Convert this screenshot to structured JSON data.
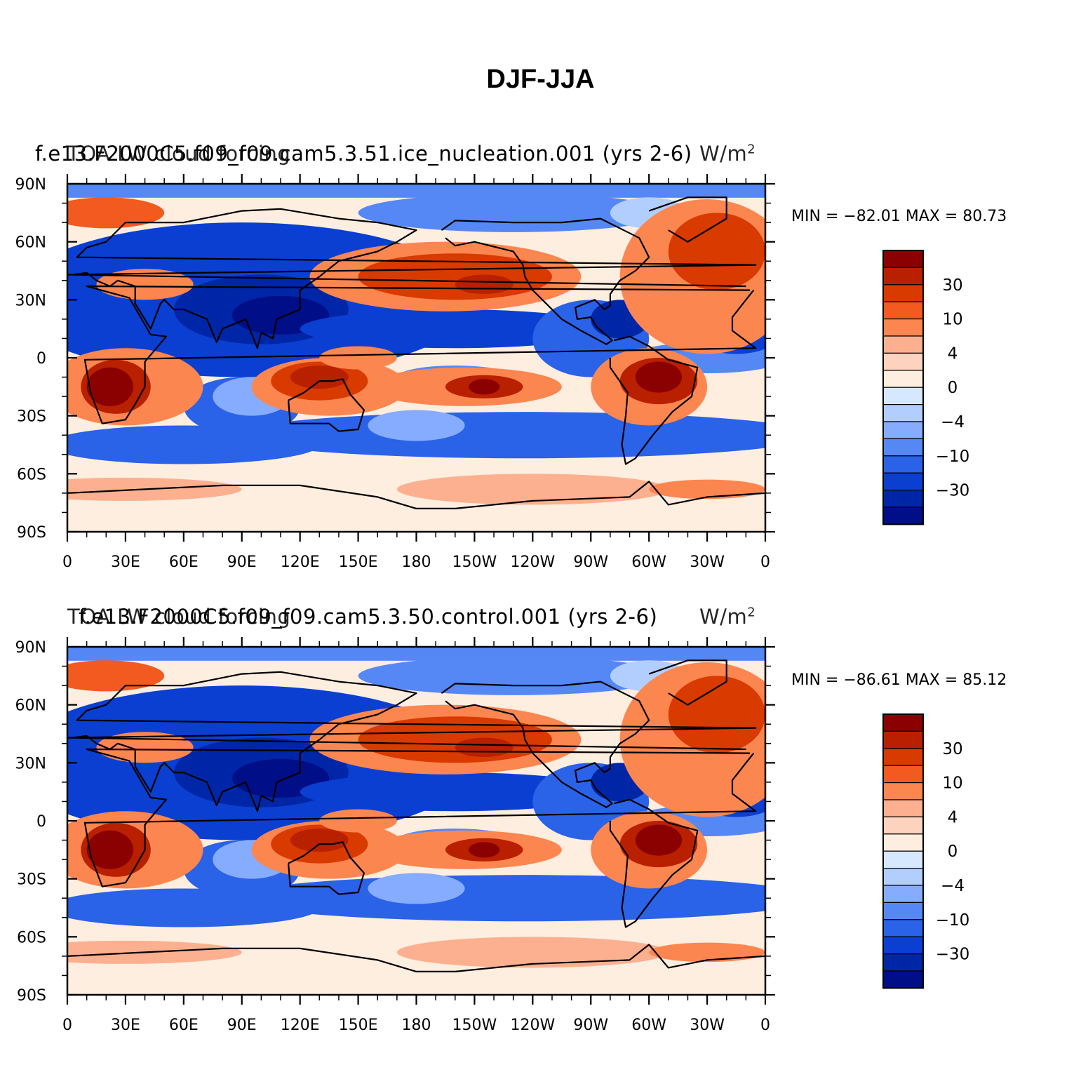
{
  "figure": {
    "title": "DJF-JJA"
  },
  "lat_labels": [
    "90N",
    "60N",
    "30N",
    "0",
    "30S",
    "60S",
    "90S"
  ],
  "lon_labels": [
    "0",
    "30E",
    "60E",
    "90E",
    "120E",
    "150E",
    "180",
    "150W",
    "120W",
    "90W",
    "60W",
    "30W",
    "0"
  ],
  "colorbar": {
    "tick_labels": [
      "30",
      "10",
      "4",
      "0",
      "−4",
      "−10",
      "−30"
    ],
    "colors": [
      "#8b0000",
      "#b82000",
      "#d93a00",
      "#f25a20",
      "#fc8650",
      "#fcb090",
      "#fdd3bf",
      "#feeee0",
      "#d6e8ff",
      "#b2ceff",
      "#86acff",
      "#5588f5",
      "#2a62e8",
      "#0a3fd2",
      "#0026a8",
      "#000e88"
    ]
  },
  "colors": {
    "ocean_neutral": "#feeee0",
    "coast": "#000000"
  },
  "panels": [
    {
      "name": "top",
      "left_title": "f.e13.F2000C5.f09_f09.cam5.3.51.ice_nucleation.001  (yrs 2-6)",
      "center_title": "TOA LW cloud forcing",
      "units_label": "W/m",
      "units_exponent": "2",
      "min_max": "MIN = −82.01  MAX =   80.73"
    },
    {
      "name": "bottom",
      "left_title": "f.e13.F2000C5.f09_f09.cam5.3.50.control.001  (yrs 2-6)",
      "center_title": "TOA LW cloud forcing",
      "units_label": "W/m",
      "units_exponent": "2",
      "min_max": "MIN = −86.61  MAX =   85.12"
    }
  ]
}
